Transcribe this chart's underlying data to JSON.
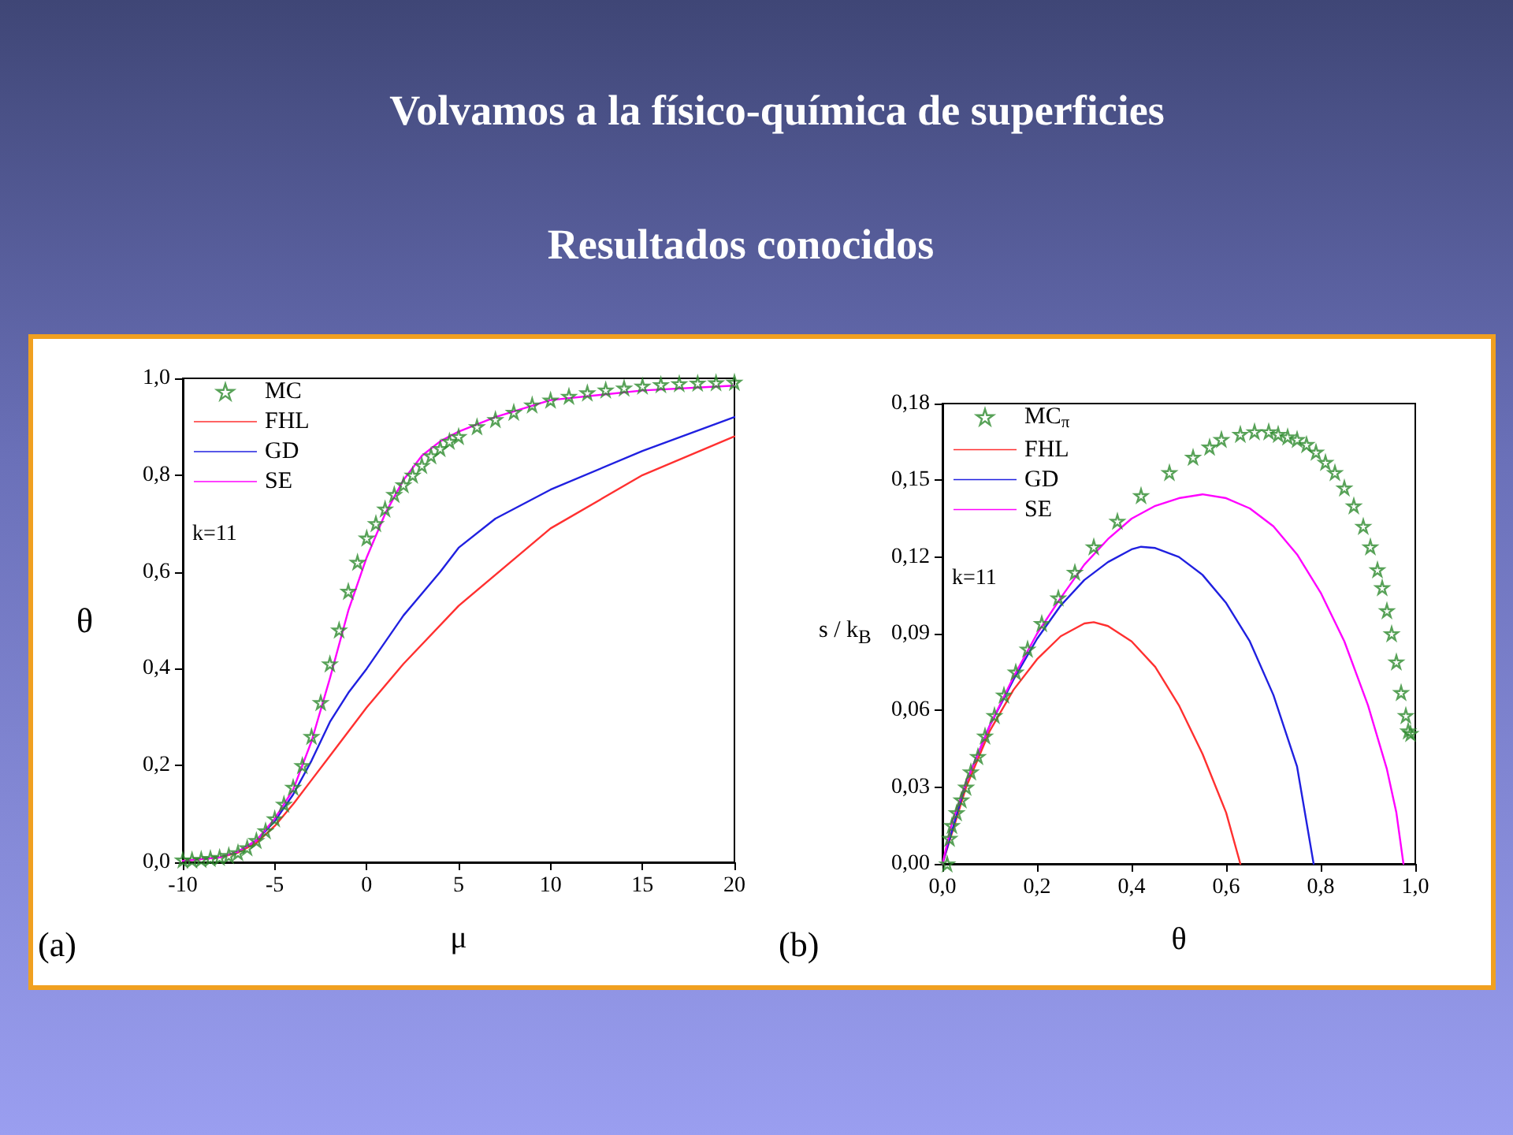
{
  "chart_data": [
    {
      "type": "line",
      "title": "Volvamos a la físico-química de superficies",
      "subtitle": "Resultados conocidos",
      "xlabel": "μ",
      "ylabel": "θ",
      "annotations": [
        "(a)",
        "k=11"
      ],
      "xlim": [
        -10,
        20
      ],
      "xticks": [
        -10,
        -5,
        0,
        5,
        10,
        15,
        20
      ],
      "ylim": [
        0,
        1
      ],
      "yticks": [
        {
          "value": 0,
          "label": "0,0"
        },
        {
          "value": 0.2,
          "label": "0,2"
        },
        {
          "value": 0.4,
          "label": "0,4"
        },
        {
          "value": 0.6,
          "label": "0,6"
        },
        {
          "value": 0.8,
          "label": "0,8"
        },
        {
          "value": 1,
          "label": "1,0"
        }
      ],
      "grid": false,
      "legend": "top left",
      "marker": "none",
      "line_style": "solid",
      "series": [
        {
          "name": "MC",
          "type": "scatter",
          "marker": "star",
          "color": "#2e8b2e",
          "x": [
            -10,
            -9.5,
            -9,
            -8.5,
            -8,
            -7.5,
            -7,
            -6.5,
            -6,
            -5.5,
            -5,
            -4.5,
            -4,
            -3.5,
            -3,
            -2.5,
            -2,
            -1.5,
            -1,
            -0.5,
            0,
            0.5,
            1,
            1.5,
            2,
            2.5,
            3,
            3.5,
            4,
            4.5,
            5,
            6,
            7,
            8,
            9,
            10,
            11,
            12,
            13,
            14,
            15,
            16,
            17,
            18,
            19,
            20
          ],
          "values": [
            0.005,
            0.005,
            0.006,
            0.008,
            0.01,
            0.014,
            0.02,
            0.03,
            0.045,
            0.065,
            0.09,
            0.12,
            0.155,
            0.2,
            0.26,
            0.33,
            0.41,
            0.48,
            0.56,
            0.62,
            0.67,
            0.7,
            0.73,
            0.76,
            0.78,
            0.8,
            0.82,
            0.84,
            0.855,
            0.87,
            0.88,
            0.9,
            0.915,
            0.93,
            0.945,
            0.955,
            0.963,
            0.97,
            0.976,
            0.98,
            0.984,
            0.987,
            0.989,
            0.99,
            0.991,
            0.992
          ]
        },
        {
          "name": "FHL",
          "color": "#ff3030",
          "x": [
            -10,
            -8,
            -7,
            -6,
            -5,
            -4,
            -3,
            -2,
            -1,
            0,
            2,
            5,
            10,
            15,
            20
          ],
          "values": [
            0.003,
            0.01,
            0.02,
            0.04,
            0.075,
            0.12,
            0.17,
            0.22,
            0.27,
            0.32,
            0.41,
            0.53,
            0.69,
            0.8,
            0.88
          ]
        },
        {
          "name": "GD",
          "color": "#2020e0",
          "x": [
            -7,
            -6,
            -5,
            -4,
            -3,
            -2,
            -1,
            0,
            2,
            4,
            5,
            7,
            10,
            15,
            20
          ],
          "values": [
            0.022,
            0.045,
            0.085,
            0.14,
            0.21,
            0.29,
            0.35,
            0.4,
            0.51,
            0.6,
            0.65,
            0.71,
            0.77,
            0.85,
            0.92
          ]
        },
        {
          "name": "SE",
          "color": "#ff00ff",
          "x": [
            -10,
            -8,
            -7,
            -6,
            -5,
            -4,
            -3,
            -2,
            -1,
            0,
            1,
            2,
            3,
            4,
            5,
            7,
            10,
            15,
            20
          ],
          "values": [
            0.003,
            0.01,
            0.022,
            0.045,
            0.09,
            0.15,
            0.25,
            0.38,
            0.52,
            0.63,
            0.72,
            0.79,
            0.84,
            0.87,
            0.89,
            0.92,
            0.955,
            0.975,
            0.985
          ]
        }
      ]
    },
    {
      "type": "line",
      "xlabel": "θ",
      "ylabel": "s / k$_{B}$",
      "annotations": [
        "(b)",
        "k=11"
      ],
      "xlim": [
        0,
        1
      ],
      "xticks": [
        {
          "value": 0,
          "label": "0,0"
        },
        {
          "value": 0.2,
          "label": "0,2"
        },
        {
          "value": 0.4,
          "label": "0,4"
        },
        {
          "value": 0.6,
          "label": "0,6"
        },
        {
          "value": 0.8,
          "label": "0,8"
        },
        {
          "value": 1,
          "label": "1,0"
        }
      ],
      "ylim": [
        0,
        0.18
      ],
      "yticks": [
        {
          "value": 0,
          "label": "0,00"
        },
        {
          "value": 0.03,
          "label": "0,03"
        },
        {
          "value": 0.06,
          "label": "0,06"
        },
        {
          "value": 0.09,
          "label": "0,09"
        },
        {
          "value": 0.12,
          "label": "0,12"
        },
        {
          "value": 0.15,
          "label": "0,15"
        },
        {
          "value": 0.18,
          "label": "0,18"
        }
      ],
      "grid": false,
      "legend": "top left",
      "marker": "none",
      "line_style": "solid",
      "series": [
        {
          "name": "MC$_{π}$",
          "type": "scatter",
          "marker": "star",
          "color": "#2e8b2e",
          "x": [
            0.01,
            0.015,
            0.02,
            0.03,
            0.04,
            0.05,
            0.06,
            0.075,
            0.09,
            0.11,
            0.13,
            0.155,
            0.18,
            0.21,
            0.245,
            0.28,
            0.32,
            0.37,
            0.42,
            0.48,
            0.53,
            0.565,
            0.59,
            0.63,
            0.66,
            0.69,
            0.71,
            0.73,
            0.75,
            0.77,
            0.79,
            0.81,
            0.83,
            0.85,
            0.87,
            0.89,
            0.905,
            0.92,
            0.93,
            0.94,
            0.95,
            0.96,
            0.97,
            0.98,
            0.985,
            0.99
          ],
          "values": [
            0,
            0.01,
            0.015,
            0.02,
            0.025,
            0.03,
            0.036,
            0.042,
            0.05,
            0.058,
            0.066,
            0.075,
            0.084,
            0.094,
            0.104,
            0.114,
            0.124,
            0.134,
            0.144,
            0.153,
            0.159,
            0.163,
            0.166,
            0.168,
            0.169,
            0.169,
            0.168,
            0.167,
            0.166,
            0.164,
            0.161,
            0.157,
            0.153,
            0.147,
            0.14,
            0.132,
            0.124,
            0.115,
            0.108,
            0.099,
            0.09,
            0.079,
            0.067,
            0.058,
            0.052,
            0.051
          ]
        },
        {
          "name": "FHL",
          "color": "#ff3030",
          "x": [
            0,
            0.05,
            0.1,
            0.15,
            0.2,
            0.25,
            0.3,
            0.32,
            0.35,
            0.4,
            0.45,
            0.5,
            0.55,
            0.6,
            0.63
          ],
          "values": [
            0,
            0.03,
            0.052,
            0.068,
            0.08,
            0.089,
            0.094,
            0.0945,
            0.093,
            0.087,
            0.077,
            0.062,
            0.043,
            0.02,
            0
          ]
        },
        {
          "name": "GD",
          "color": "#2020e0",
          "x": [
            0,
            0.05,
            0.1,
            0.15,
            0.2,
            0.25,
            0.3,
            0.35,
            0.4,
            0.42,
            0.45,
            0.5,
            0.55,
            0.6,
            0.65,
            0.7,
            0.75,
            0.785
          ],
          "values": [
            0,
            0.032,
            0.054,
            0.072,
            0.088,
            0.101,
            0.111,
            0.118,
            0.123,
            0.124,
            0.1235,
            0.12,
            0.113,
            0.102,
            0.087,
            0.066,
            0.038,
            0
          ]
        },
        {
          "name": "SE",
          "color": "#ff00ff",
          "x": [
            0,
            0.02,
            0.05,
            0.1,
            0.15,
            0.2,
            0.25,
            0.3,
            0.35,
            0.4,
            0.45,
            0.5,
            0.55,
            0.6,
            0.65,
            0.7,
            0.75,
            0.8,
            0.85,
            0.9,
            0.94,
            0.96,
            0.975
          ],
          "values": [
            0,
            0.016,
            0.032,
            0.054,
            0.073,
            0.09,
            0.104,
            0.117,
            0.127,
            0.135,
            0.14,
            0.143,
            0.1445,
            0.143,
            0.139,
            0.132,
            0.121,
            0.106,
            0.087,
            0.062,
            0.037,
            0.02,
            0
          ]
        }
      ]
    }
  ]
}
